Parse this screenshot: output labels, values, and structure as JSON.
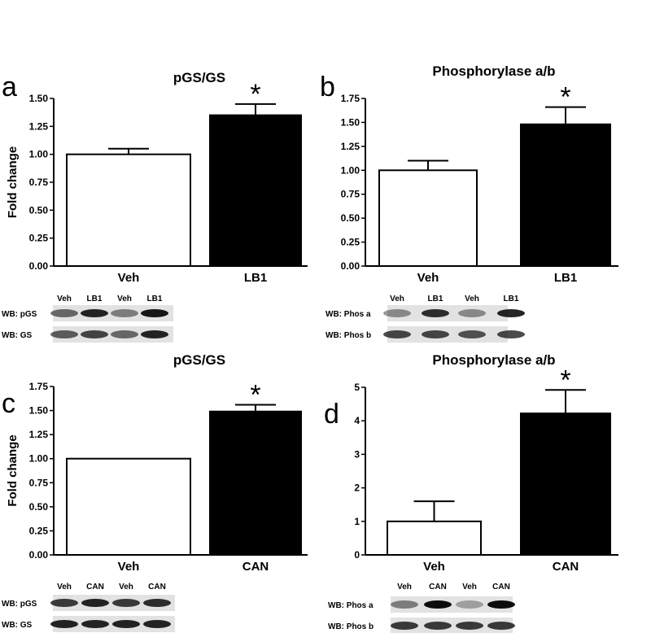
{
  "chart_data": [
    {
      "type": "bar",
      "panel_letter": "a",
      "title": "pGS/GS",
      "ylabel": "Fold change",
      "categories": [
        "Veh",
        "LB1"
      ],
      "values": [
        1.0,
        1.35
      ],
      "errors": [
        0.05,
        0.1
      ],
      "fills": [
        "#ffffff",
        "#000000"
      ],
      "ylim": [
        0,
        1.5
      ],
      "yticks": [
        "0.00",
        "0.25",
        "0.50",
        "0.75",
        "1.00",
        "1.25",
        "1.50"
      ],
      "annotation": "*",
      "blot": {
        "lanes": [
          "Veh",
          "LB1",
          "Veh",
          "LB1"
        ],
        "rows": [
          "WB: pGS",
          "WB: GS"
        ],
        "intensity": [
          [
            0.55,
            0.85,
            0.45,
            0.9
          ],
          [
            0.6,
            0.7,
            0.55,
            0.85
          ]
        ]
      }
    },
    {
      "type": "bar",
      "panel_letter": "b",
      "title": "Phosphorylase a/b",
      "ylabel": "",
      "categories": [
        "Veh",
        "LB1"
      ],
      "values": [
        1.0,
        1.48
      ],
      "errors": [
        0.1,
        0.18
      ],
      "fills": [
        "#ffffff",
        "#000000"
      ],
      "ylim": [
        0,
        1.75
      ],
      "yticks": [
        "0.00",
        "0.25",
        "0.50",
        "0.75",
        "1.00",
        "1.25",
        "1.50",
        "1.75"
      ],
      "annotation": "*",
      "blot": {
        "lanes": [
          "Veh",
          "LB1",
          "Veh",
          "LB1"
        ],
        "rows": [
          "WB: Phos a",
          "WB: Phos b"
        ],
        "intensity": [
          [
            0.4,
            0.8,
            0.4,
            0.85
          ],
          [
            0.7,
            0.7,
            0.65,
            0.7
          ]
        ]
      }
    },
    {
      "type": "bar",
      "panel_letter": "c",
      "title": "pGS/GS",
      "ylabel": "Fold change",
      "categories": [
        "Veh",
        "CAN"
      ],
      "values": [
        1.0,
        1.49
      ],
      "errors": [
        0.0,
        0.07
      ],
      "fills": [
        "#ffffff",
        "#000000"
      ],
      "ylim": [
        0,
        1.75
      ],
      "yticks": [
        "0.00",
        "0.25",
        "0.50",
        "0.75",
        "1.00",
        "1.25",
        "1.50",
        "1.75"
      ],
      "annotation": "*",
      "blot": {
        "lanes": [
          "Veh",
          "CAN",
          "Veh",
          "CAN"
        ],
        "rows": [
          "WB: pGS",
          "WB: GS"
        ],
        "intensity": [
          [
            0.75,
            0.85,
            0.75,
            0.8
          ],
          [
            0.85,
            0.85,
            0.85,
            0.85
          ]
        ]
      }
    },
    {
      "type": "bar",
      "panel_letter": "d",
      "title": "Phosphorylase a/b",
      "ylabel": "",
      "categories": [
        "Veh",
        "CAN"
      ],
      "values": [
        1.0,
        4.22
      ],
      "errors": [
        0.6,
        0.7
      ],
      "fills": [
        "#ffffff",
        "#000000"
      ],
      "ylim": [
        0,
        5
      ],
      "yticks": [
        "0",
        "1",
        "2",
        "3",
        "4",
        "5"
      ],
      "annotation": "*",
      "blot": {
        "lanes": [
          "Veh",
          "CAN",
          "Veh",
          "CAN"
        ],
        "rows": [
          "WB: Phos a",
          "WB: Phos b"
        ],
        "intensity": [
          [
            0.45,
            0.95,
            0.3,
            0.95
          ],
          [
            0.75,
            0.75,
            0.75,
            0.75
          ]
        ]
      }
    }
  ]
}
